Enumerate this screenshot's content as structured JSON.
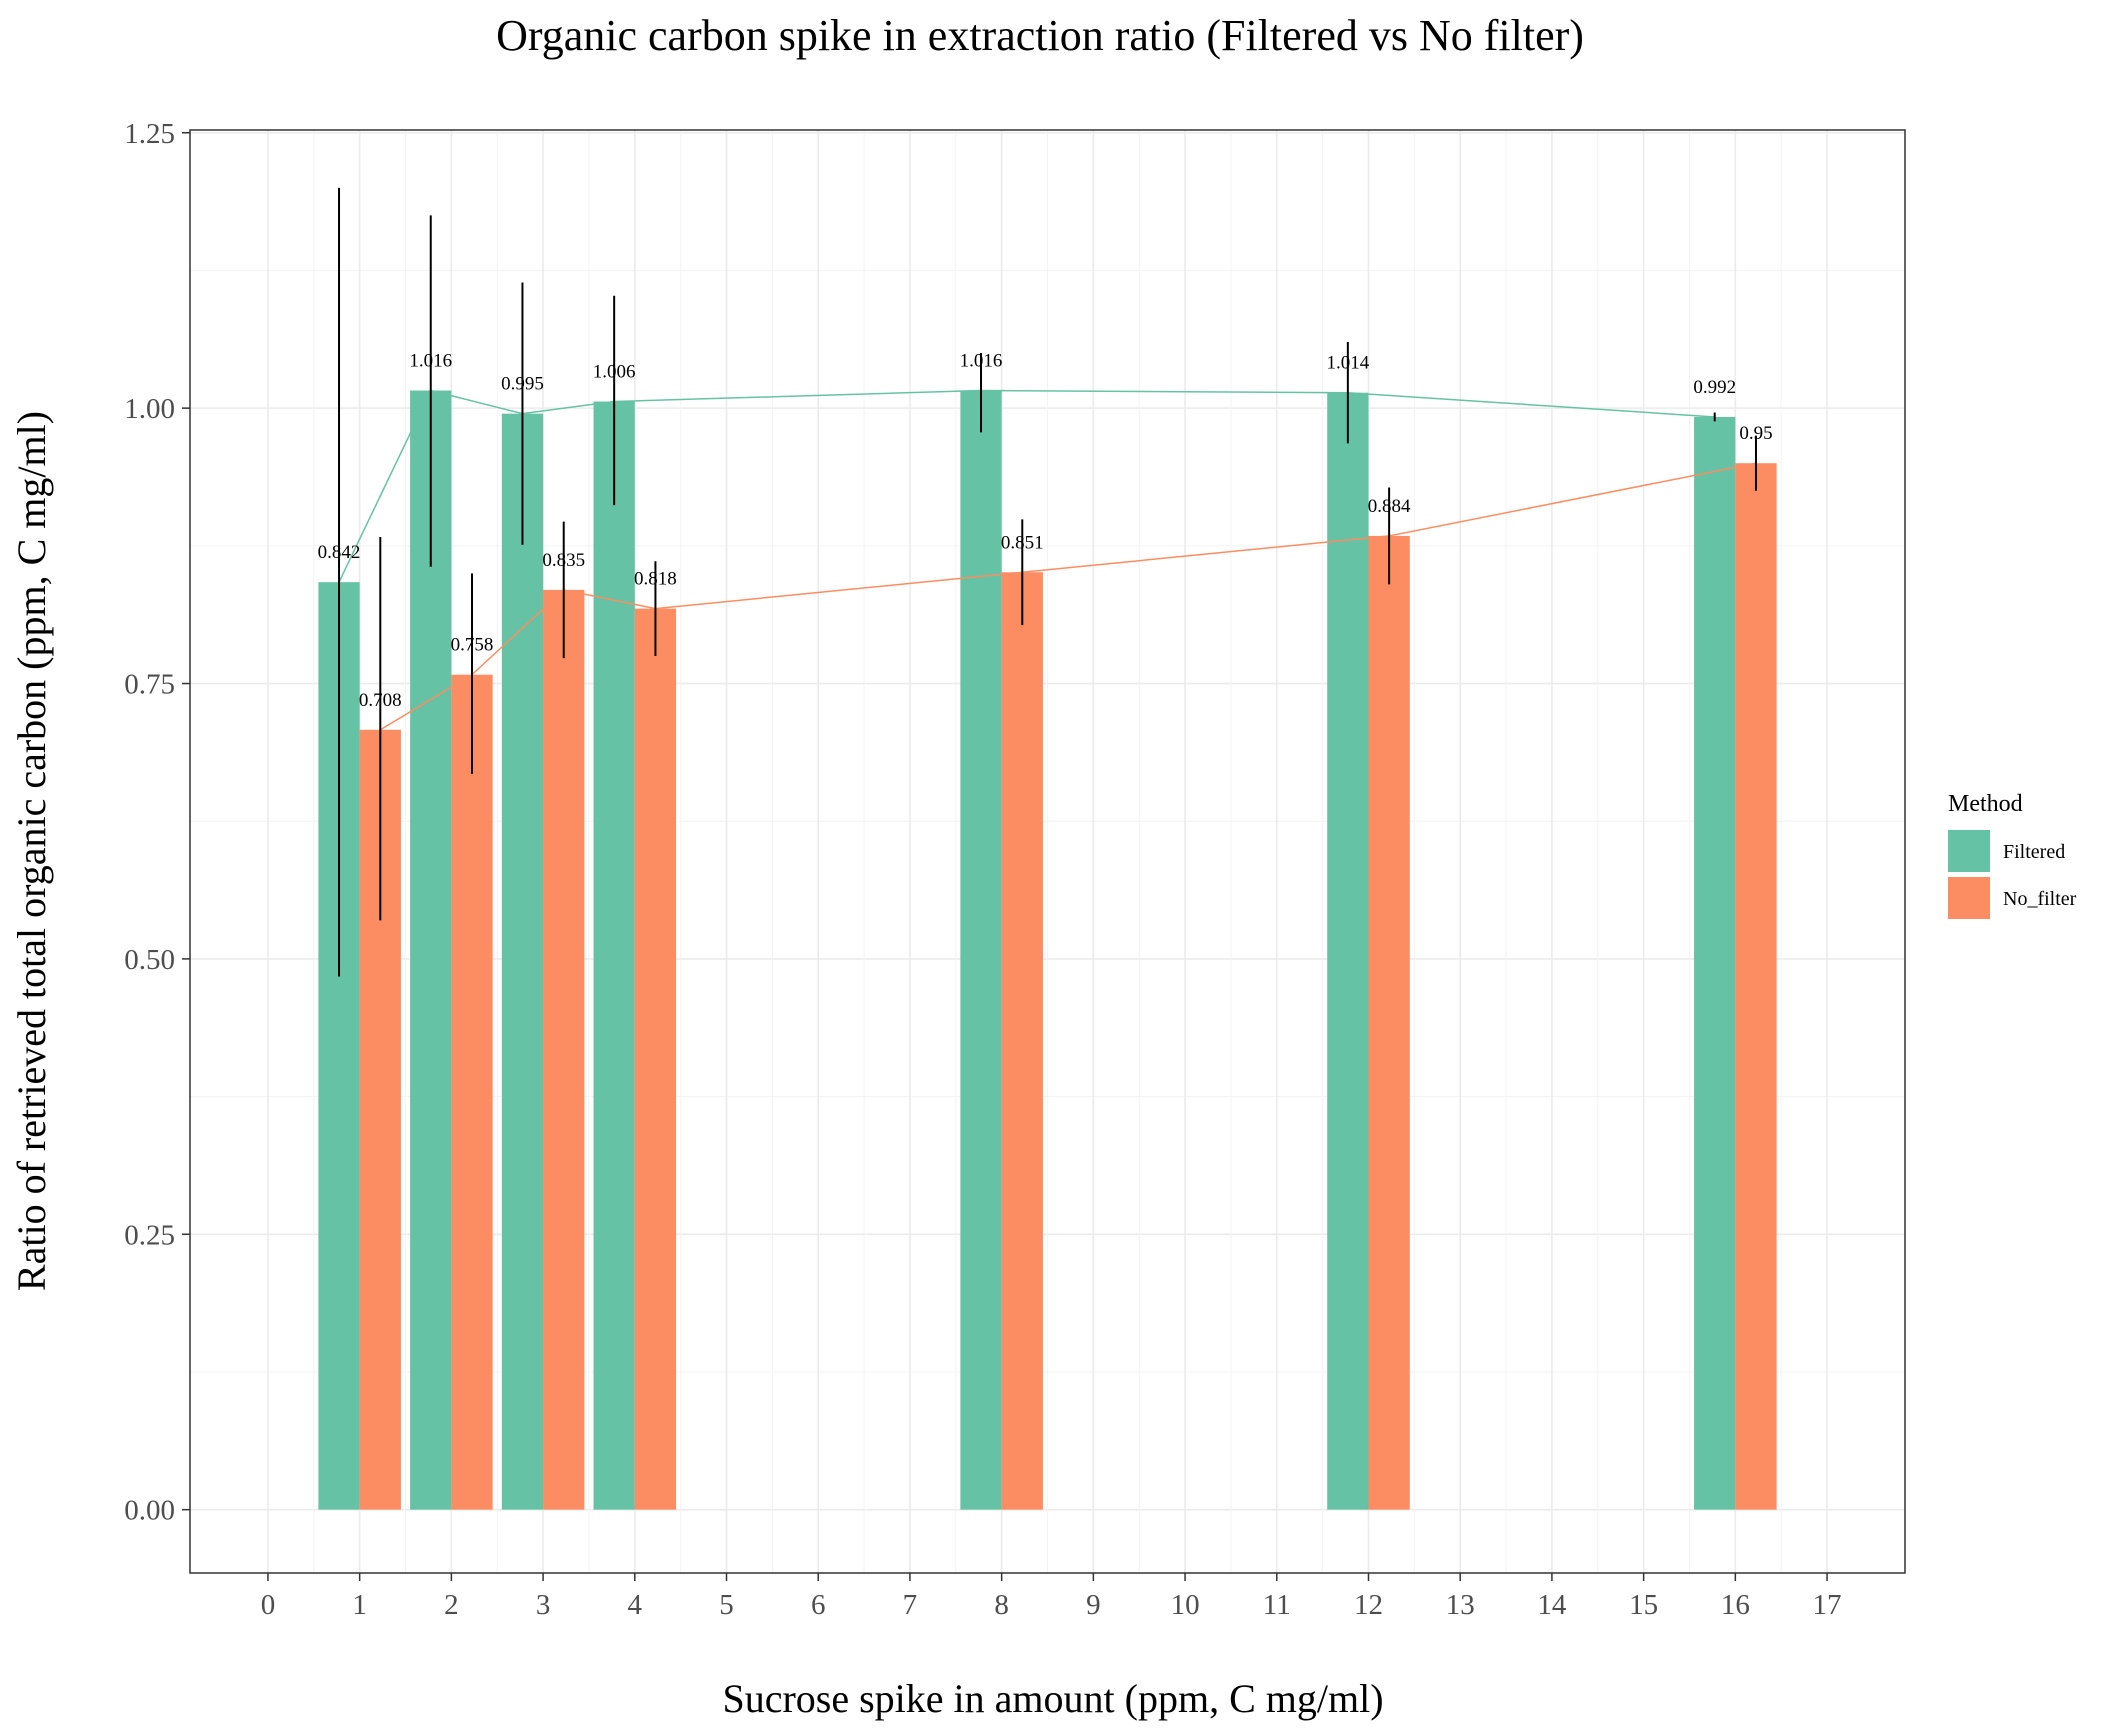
{
  "chart_data": {
    "type": "bar",
    "title": "Organic carbon spike in extraction ratio (Filtered vs No filter)",
    "xlabel": "Sucrose spike in amount (ppm, C mg/ml)",
    "ylabel": "Ratio of retrieved total organic carbon (ppm, C mg/ml)",
    "xlim": [
      -0.85,
      17.85
    ],
    "ylim": [
      -0.0575,
      1.2525
    ],
    "x_ticks": [
      "0",
      "1",
      "2",
      "3",
      "4",
      "5",
      "6",
      "7",
      "8",
      "9",
      "10",
      "11",
      "12",
      "13",
      "14",
      "15",
      "16",
      "17"
    ],
    "y_ticks": [
      "0.00",
      "0.25",
      "0.50",
      "0.75",
      "1.00",
      "1.25"
    ],
    "grid": true,
    "legend_position": "right",
    "legend_title": "Method",
    "x": [
      1,
      2,
      3,
      4,
      8,
      12,
      16
    ],
    "series": [
      {
        "name": "Filtered",
        "color": "#66c2a5",
        "values": [
          0.842,
          1.016,
          0.995,
          1.006,
          1.016,
          1.014,
          0.992
        ],
        "labels": [
          "0.842",
          "1.016",
          "0.995",
          "1.006",
          "1.016",
          "1.014",
          "0.992"
        ],
        "error_low": [
          0.484,
          0.856,
          0.876,
          0.912,
          0.978,
          0.968,
          0.988
        ],
        "error_high": [
          1.2,
          1.175,
          1.114,
          1.102,
          1.05,
          1.06,
          0.996
        ]
      },
      {
        "name": "No_filter",
        "color": "#fc8d62",
        "values": [
          0.708,
          0.758,
          0.835,
          0.818,
          0.851,
          0.884,
          0.95
        ],
        "labels": [
          "0.708",
          "0.758",
          "0.835",
          "0.818",
          "0.851",
          "0.884",
          "0.95"
        ],
        "error_low": [
          0.535,
          0.668,
          0.773,
          0.775,
          0.803,
          0.84,
          0.925
        ],
        "error_high": [
          0.883,
          0.85,
          0.897,
          0.861,
          0.899,
          0.928,
          0.975
        ]
      }
    ]
  }
}
